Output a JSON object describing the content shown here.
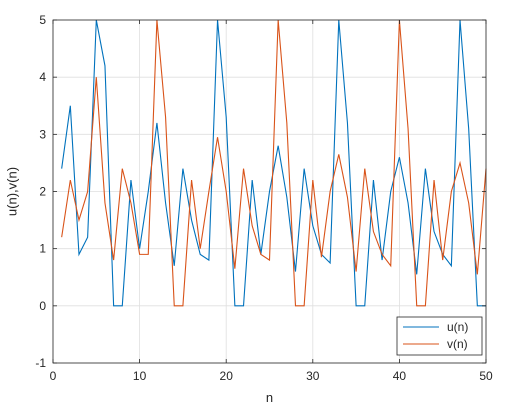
{
  "chart_data": {
    "type": "line",
    "title": "",
    "xlabel": "n",
    "ylabel": "u(n),v(n)",
    "xlim": [
      0,
      50
    ],
    "ylim": [
      -1,
      5
    ],
    "xticks": [
      0,
      10,
      20,
      30,
      40,
      50
    ],
    "yticks": [
      -1,
      0,
      1,
      2,
      3,
      4,
      5
    ],
    "grid": true,
    "legend_position": "bottom-right",
    "x": [
      1,
      2,
      3,
      4,
      5,
      6,
      7,
      8,
      9,
      10,
      11,
      12,
      13,
      14,
      15,
      16,
      17,
      18,
      19,
      20,
      21,
      22,
      23,
      24,
      25,
      26,
      27,
      28,
      29,
      30,
      31,
      32,
      33,
      34,
      35,
      36,
      37,
      38,
      39,
      40,
      41,
      42,
      43,
      44,
      45,
      46,
      47,
      48,
      49,
      50
    ],
    "series": [
      {
        "name": "u(n)",
        "color": "#0072BD",
        "values": [
          2.4,
          3.5,
          0.9,
          1.2,
          5.0,
          4.2,
          0.0,
          0.0,
          2.2,
          1.0,
          2.0,
          3.2,
          1.8,
          0.7,
          2.4,
          1.5,
          0.9,
          0.8,
          5.0,
          3.3,
          0.0,
          0.0,
          2.2,
          0.9,
          2.0,
          2.8,
          1.9,
          0.6,
          2.4,
          1.4,
          0.9,
          0.75,
          5.0,
          3.2,
          0.0,
          0.0,
          2.2,
          0.8,
          2.0,
          2.6,
          1.8,
          0.55,
          2.4,
          1.3,
          0.9,
          0.7,
          5.0,
          3.1,
          0.0,
          0.0
        ]
      },
      {
        "name": "v(n)",
        "color": "#D95319",
        "values": [
          1.2,
          2.2,
          1.5,
          2.0,
          4.0,
          1.8,
          0.8,
          2.4,
          1.8,
          0.9,
          0.9,
          5.0,
          3.3,
          0.0,
          0.0,
          2.2,
          1.0,
          2.0,
          2.95,
          2.0,
          0.65,
          2.4,
          1.4,
          0.9,
          0.8,
          5.0,
          3.2,
          0.0,
          0.0,
          2.2,
          0.85,
          2.0,
          2.65,
          1.9,
          0.6,
          2.4,
          1.3,
          0.9,
          0.7,
          5.0,
          3.1,
          0.0,
          0.0,
          2.2,
          0.8,
          2.0,
          2.5,
          1.8,
          0.55,
          2.4
        ]
      }
    ]
  }
}
